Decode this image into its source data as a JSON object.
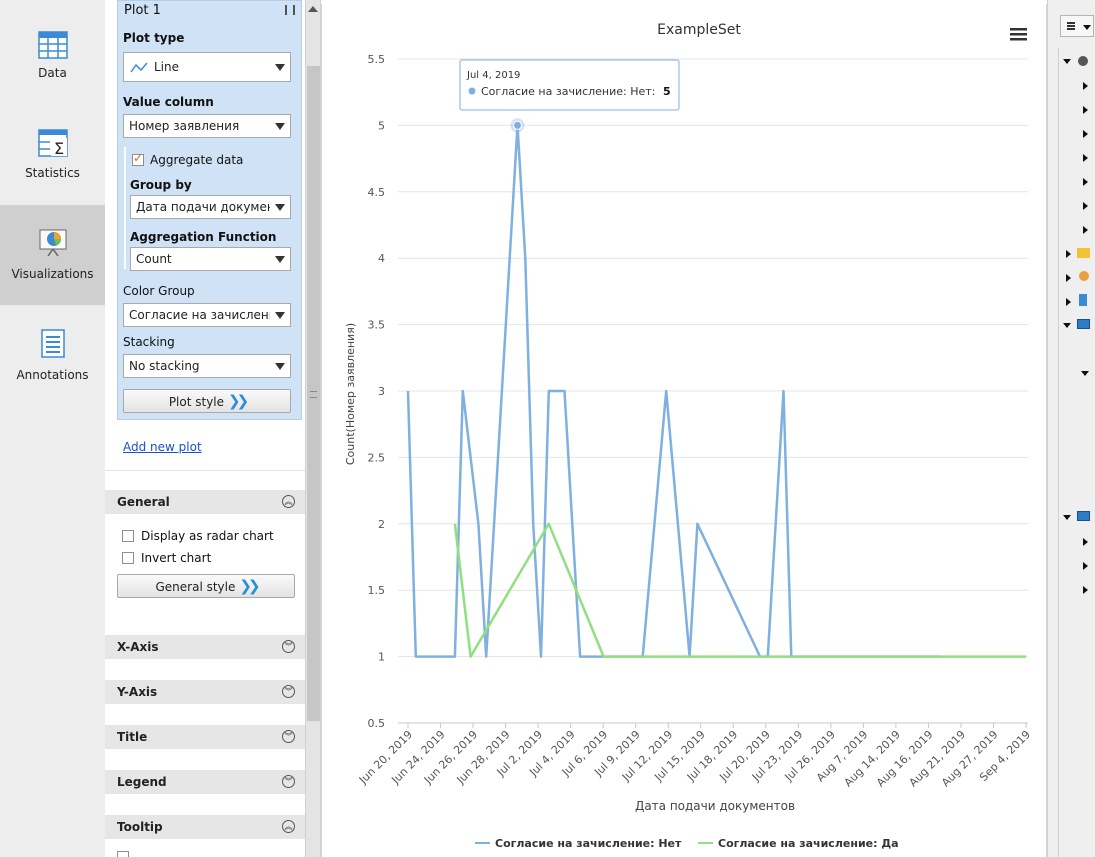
{
  "nav": {
    "items": [
      {
        "label": "Data",
        "icon": "table-icon"
      },
      {
        "label": "Statistics",
        "icon": "statistics-icon"
      },
      {
        "label": "Visualizations",
        "icon": "visualizations-icon"
      },
      {
        "label": "Annotations",
        "icon": "annotations-icon"
      }
    ],
    "active": "Visualizations"
  },
  "plot_config": {
    "header": "Plot 1",
    "plot_type_label": "Plot type",
    "plot_type_value": "Line",
    "value_column_label": "Value column",
    "value_column_value": "Номер заявления",
    "aggregate_label": "Aggregate data",
    "aggregate_checked": true,
    "group_by_label": "Group by",
    "group_by_value": "Дата подачи документов",
    "aggregation_function_label": "Aggregation Function",
    "aggregation_function_value": "Count",
    "color_group_label": "Color Group",
    "color_group_value": "Согласие на зачисление",
    "stacking_label": "Stacking",
    "stacking_value": "No stacking",
    "plot_style_button": "Plot style",
    "add_new_plot_link": "Add new plot"
  },
  "general": {
    "title": "General",
    "radar_label": "Display as radar chart",
    "radar_checked": false,
    "invert_label": "Invert chart",
    "invert_checked": false,
    "style_button": "General style"
  },
  "sections": [
    "X-Axis",
    "Y-Axis",
    "Title",
    "Legend",
    "Tooltip"
  ],
  "tooltip": {
    "date": "Jul 4, 2019",
    "series": "Согласие на зачисление: Нет:",
    "value": "5"
  },
  "colors": {
    "series_net": "#7eb0e0",
    "series_da": "#8fe07e",
    "plot_box_bg": "#cfe2f6",
    "accent_link": "#1a4fd0"
  },
  "chart_data": {
    "type": "line",
    "title": "ExampleSet",
    "xlabel": "Дата подачи документов",
    "ylabel": "Count(Номер заявления)",
    "ylim": [
      0.5,
      5.5
    ],
    "yticks": [
      0.5,
      1,
      1.5,
      2,
      2.5,
      3,
      3.5,
      4,
      4.5,
      5,
      5.5
    ],
    "xlim": [
      "2019-06-20",
      "2019-09-07"
    ],
    "xtick_labels": [
      "Jun 20, 2019",
      "Jun 24, 2019",
      "Jun 26, 2019",
      "Jun 28, 2019",
      "Jul 2, 2019",
      "Jul 4, 2019",
      "Jul 6, 2019",
      "Jul 9, 2019",
      "Jul 12, 2019",
      "Jul 15, 2019",
      "Jul 18, 2019",
      "Jul 20, 2019",
      "Jul 23, 2019",
      "Jul 26, 2019",
      "Aug 7, 2019",
      "Aug 14, 2019",
      "Aug 16, 2019",
      "Aug 21, 2019",
      "Aug 27, 2019",
      "Sep 4, 2019"
    ],
    "grid": true,
    "legend_position": "bottom",
    "series": [
      {
        "name": "Согласие на зачисление: Нет",
        "points": [
          [
            "2019-06-20",
            3
          ],
          [
            "2019-06-21",
            1
          ],
          [
            "2019-06-26",
            1
          ],
          [
            "2019-06-27",
            3
          ],
          [
            "2019-06-29",
            2
          ],
          [
            "2019-06-30",
            1
          ],
          [
            "2019-07-01",
            2
          ],
          [
            "2019-07-04",
            5
          ],
          [
            "2019-07-05",
            4
          ],
          [
            "2019-07-06",
            2
          ],
          [
            "2019-07-07",
            1
          ],
          [
            "2019-07-08",
            3
          ],
          [
            "2019-07-10",
            3
          ],
          [
            "2019-07-12",
            1
          ],
          [
            "2019-07-20",
            1
          ],
          [
            "2019-07-23",
            3
          ],
          [
            "2019-07-26",
            1
          ],
          [
            "2019-07-27",
            2
          ],
          [
            "2019-08-04",
            1
          ],
          [
            "2019-08-05",
            1
          ],
          [
            "2019-08-07",
            3
          ],
          [
            "2019-08-08",
            1
          ],
          [
            "2019-08-27",
            1
          ]
        ]
      },
      {
        "name": "Согласие на зачисление: Да",
        "points": [
          [
            "2019-06-26",
            2
          ],
          [
            "2019-06-28",
            1
          ],
          [
            "2019-07-08",
            2
          ],
          [
            "2019-07-15",
            1
          ],
          [
            "2019-09-07",
            1
          ]
        ]
      }
    ]
  }
}
